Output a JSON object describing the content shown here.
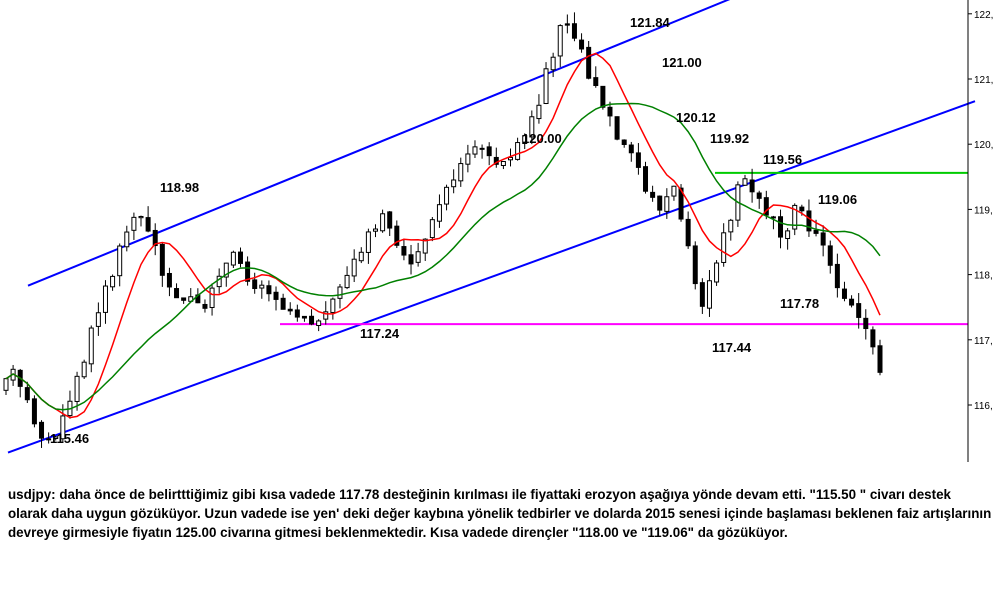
{
  "chart_data": {
    "type": "candlestick",
    "instrument": "usdjpy",
    "ylim": [
      115.25,
      122.15
    ],
    "y_ticks": [
      "116,",
      "117,",
      "118,",
      "119,",
      "120,",
      "121,",
      "122,"
    ],
    "y_tick_values": [
      116,
      117,
      118,
      119,
      120,
      121,
      122
    ],
    "price_labels": [
      "121.84",
      "121.00",
      "120.12",
      "119.92",
      "120.00",
      "119.56",
      "119.06",
      "118.98",
      "117.78",
      "117.24",
      "117.44",
      "115.46"
    ],
    "horizontal_levels": [
      {
        "value": 119.56,
        "color": "#00cc00"
      },
      {
        "value": 117.24,
        "color": "#ff00ff"
      }
    ],
    "channel_lines": [
      {
        "from": 117.83,
        "to": 122.34,
        "color": "#0000ff"
      },
      {
        "from": 115.27,
        "to": 120.66,
        "color": "#0000ff"
      }
    ],
    "moving_averages": [
      {
        "color": "#ff0000",
        "period": "short"
      },
      {
        "color": "#008000",
        "period": "long"
      }
    ],
    "price_path": [
      116.2,
      116.5,
      116.1,
      115.55,
      115.46,
      116.0,
      116.6,
      117.3,
      117.9,
      118.5,
      118.98,
      118.6,
      118.0,
      117.6,
      117.7,
      117.5,
      118.0,
      118.4,
      117.9,
      117.8,
      117.6,
      117.4,
      117.3,
      117.24,
      117.5,
      117.9,
      118.3,
      118.7,
      118.9,
      118.4,
      118.2,
      118.6,
      119.1,
      119.5,
      119.9,
      120.0,
      119.7,
      119.8,
      120.1,
      120.5,
      121.3,
      121.84,
      121.6,
      121.0,
      120.6,
      120.12,
      119.92,
      119.3,
      119.0,
      119.4,
      118.4,
      117.44,
      118.1,
      118.8,
      119.56,
      119.2,
      118.9,
      118.5,
      119.06,
      118.7,
      118.4,
      117.78,
      117.5,
      117.2,
      116.5
    ]
  },
  "commentary": {
    "text": "usdjpy: daha önce de belirtttiğimiz gibi kısa vadede 117.78 desteğinin kırılması ile fiyattaki erozyon aşağıya yönde devam etti. \"115.50 \" civarı destek olarak daha uygun gözüküyor. Uzun vadede ise  yen' deki değer kaybına yönelik tedbirler ve dolarda 2015 senesi içinde başlaması beklenen faiz artışlarının devreye girmesiyle fiyatın 125.00 civarına gitmesi beklenmektedir. Kısa vadede dirençler \"118.00 ve \"119.06\" da gözüküyor."
  }
}
